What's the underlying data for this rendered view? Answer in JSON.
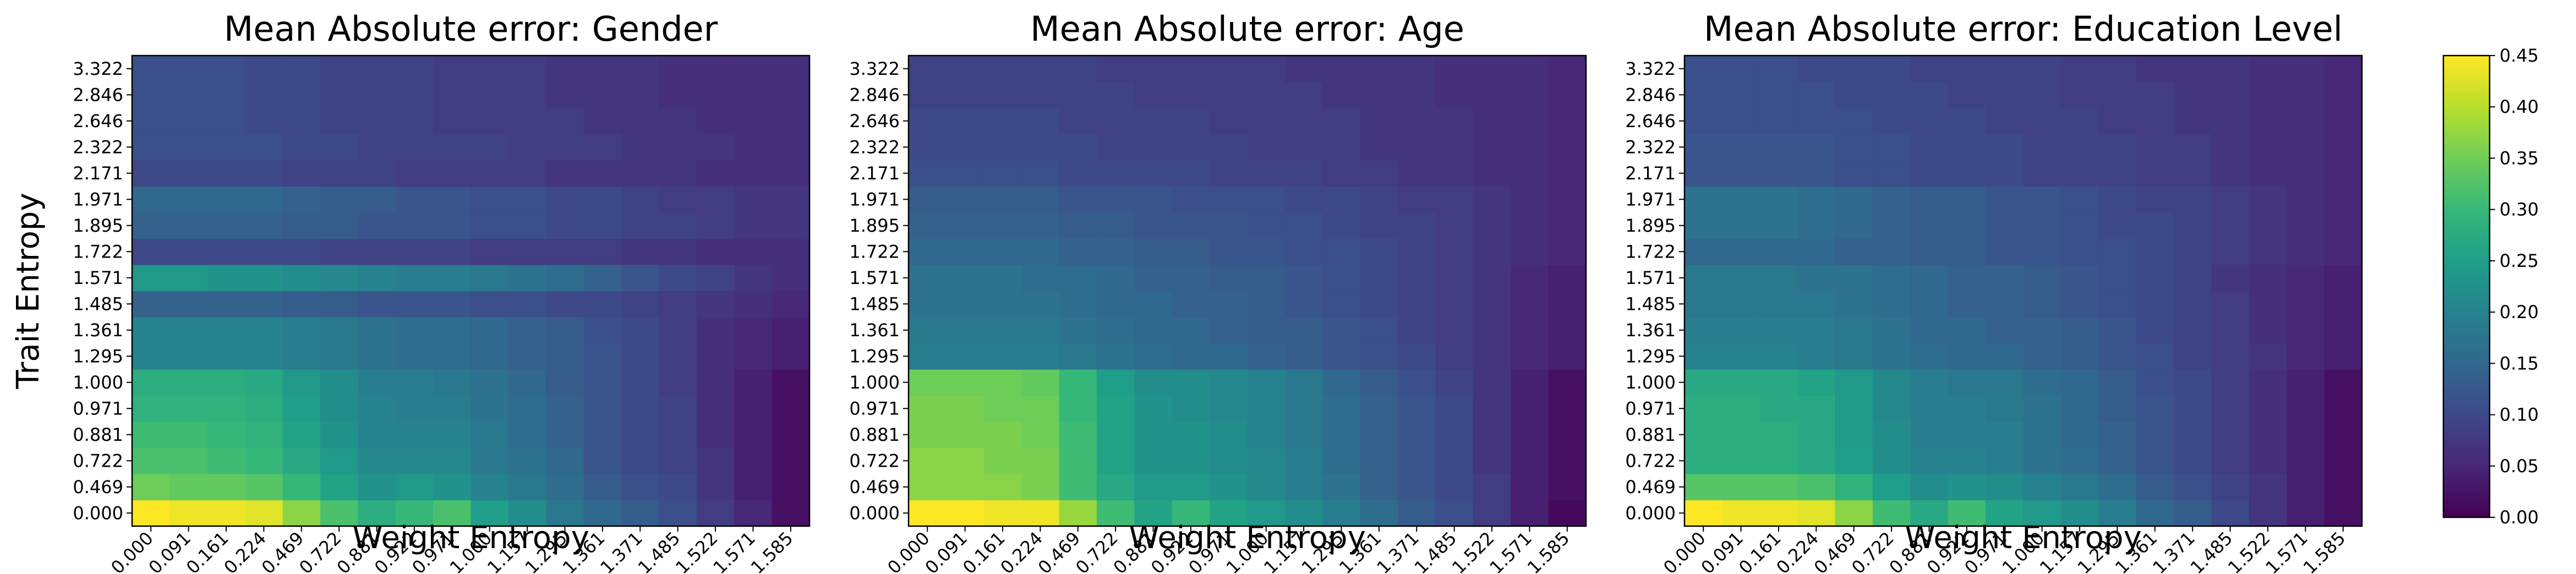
{
  "chart_data": [
    {
      "type": "heatmap",
      "title": "Mean Absolute error: Gender",
      "xlabel": "Weight Entropy",
      "ylabel": "Trait Entropy",
      "x_ticks": [
        "0.000",
        "0.091",
        "0.161",
        "0.224",
        "0.469",
        "0.722",
        "0.881",
        "0.922",
        "0.971",
        "1.000",
        "1.157",
        "1.295",
        "1.361",
        "1.371",
        "1.485",
        "1.522",
        "1.571",
        "1.585"
      ],
      "y_ticks": [
        "0.000",
        "0.469",
        "0.722",
        "0.881",
        "0.971",
        "1.000",
        "1.295",
        "1.361",
        "1.485",
        "1.571",
        "1.722",
        "1.895",
        "1.971",
        "2.171",
        "2.322",
        "2.646",
        "2.846",
        "3.322"
      ],
      "values": [
        [
          0.45,
          0.44,
          0.44,
          0.43,
          0.37,
          0.32,
          0.28,
          0.3,
          0.32,
          0.25,
          0.22,
          0.18,
          0.15,
          0.13,
          0.11,
          0.08,
          0.05,
          0.02
        ],
        [
          0.35,
          0.34,
          0.34,
          0.33,
          0.3,
          0.26,
          0.23,
          0.24,
          0.23,
          0.2,
          0.18,
          0.16,
          0.13,
          0.11,
          0.1,
          0.07,
          0.04,
          0.02
        ],
        [
          0.32,
          0.32,
          0.31,
          0.3,
          0.27,
          0.24,
          0.21,
          0.21,
          0.21,
          0.18,
          0.17,
          0.15,
          0.12,
          0.1,
          0.09,
          0.07,
          0.04,
          0.02
        ],
        [
          0.31,
          0.31,
          0.3,
          0.29,
          0.26,
          0.23,
          0.2,
          0.2,
          0.2,
          0.18,
          0.16,
          0.14,
          0.12,
          0.1,
          0.09,
          0.06,
          0.04,
          0.02
        ],
        [
          0.29,
          0.29,
          0.29,
          0.28,
          0.25,
          0.22,
          0.2,
          0.19,
          0.19,
          0.17,
          0.16,
          0.14,
          0.12,
          0.1,
          0.09,
          0.06,
          0.04,
          0.02
        ],
        [
          0.28,
          0.28,
          0.28,
          0.27,
          0.24,
          0.22,
          0.19,
          0.19,
          0.18,
          0.17,
          0.15,
          0.13,
          0.12,
          0.1,
          0.08,
          0.06,
          0.04,
          0.02
        ],
        [
          0.2,
          0.2,
          0.2,
          0.2,
          0.19,
          0.18,
          0.17,
          0.16,
          0.16,
          0.15,
          0.14,
          0.13,
          0.12,
          0.1,
          0.08,
          0.06,
          0.05,
          0.04
        ],
        [
          0.2,
          0.2,
          0.2,
          0.2,
          0.19,
          0.18,
          0.17,
          0.16,
          0.16,
          0.15,
          0.14,
          0.13,
          0.11,
          0.1,
          0.08,
          0.06,
          0.05,
          0.04
        ],
        [
          0.14,
          0.14,
          0.14,
          0.14,
          0.13,
          0.13,
          0.12,
          0.12,
          0.12,
          0.11,
          0.11,
          0.1,
          0.1,
          0.09,
          0.08,
          0.07,
          0.06,
          0.05
        ],
        [
          0.24,
          0.24,
          0.23,
          0.23,
          0.22,
          0.21,
          0.2,
          0.19,
          0.19,
          0.18,
          0.17,
          0.16,
          0.14,
          0.12,
          0.1,
          0.09,
          0.07,
          0.06
        ],
        [
          0.1,
          0.1,
          0.1,
          0.1,
          0.1,
          0.09,
          0.09,
          0.09,
          0.09,
          0.08,
          0.08,
          0.08,
          0.08,
          0.07,
          0.07,
          0.06,
          0.06,
          0.06
        ],
        [
          0.14,
          0.14,
          0.14,
          0.14,
          0.13,
          0.13,
          0.12,
          0.12,
          0.12,
          0.11,
          0.11,
          0.1,
          0.1,
          0.09,
          0.09,
          0.08,
          0.07,
          0.07
        ],
        [
          0.15,
          0.15,
          0.15,
          0.15,
          0.14,
          0.13,
          0.13,
          0.12,
          0.12,
          0.11,
          0.11,
          0.1,
          0.1,
          0.09,
          0.08,
          0.08,
          0.07,
          0.07
        ],
        [
          0.1,
          0.1,
          0.1,
          0.1,
          0.09,
          0.09,
          0.09,
          0.08,
          0.08,
          0.08,
          0.08,
          0.07,
          0.07,
          0.07,
          0.07,
          0.06,
          0.06,
          0.06
        ],
        [
          0.11,
          0.11,
          0.11,
          0.11,
          0.1,
          0.1,
          0.09,
          0.09,
          0.09,
          0.09,
          0.08,
          0.08,
          0.08,
          0.07,
          0.07,
          0.07,
          0.06,
          0.06
        ],
        [
          0.11,
          0.11,
          0.11,
          0.1,
          0.1,
          0.09,
          0.09,
          0.09,
          0.08,
          0.08,
          0.08,
          0.08,
          0.07,
          0.07,
          0.07,
          0.06,
          0.06,
          0.06
        ],
        [
          0.11,
          0.11,
          0.11,
          0.1,
          0.1,
          0.09,
          0.09,
          0.09,
          0.08,
          0.08,
          0.08,
          0.07,
          0.07,
          0.07,
          0.06,
          0.06,
          0.06,
          0.06
        ],
        [
          0.11,
          0.11,
          0.11,
          0.1,
          0.1,
          0.09,
          0.09,
          0.09,
          0.08,
          0.08,
          0.08,
          0.07,
          0.07,
          0.07,
          0.06,
          0.06,
          0.06,
          0.06
        ]
      ],
      "value_range": [
        0.0,
        0.45
      ]
    },
    {
      "type": "heatmap",
      "title": "Mean Absolute error: Age",
      "xlabel": "Weight Entropy",
      "ylabel": "",
      "x_ticks": [
        "0.000",
        "0.091",
        "0.161",
        "0.224",
        "0.469",
        "0.722",
        "0.881",
        "0.922",
        "0.971",
        "1.000",
        "1.157",
        "1.295",
        "1.361",
        "1.371",
        "1.485",
        "1.522",
        "1.571",
        "1.585"
      ],
      "y_ticks": [
        "0.000",
        "0.469",
        "0.722",
        "0.881",
        "0.971",
        "1.000",
        "1.295",
        "1.361",
        "1.485",
        "1.571",
        "1.722",
        "1.895",
        "1.971",
        "2.171",
        "2.322",
        "2.646",
        "2.846",
        "3.322"
      ],
      "values": [
        [
          0.45,
          0.45,
          0.44,
          0.44,
          0.38,
          0.31,
          0.26,
          0.3,
          0.26,
          0.24,
          0.22,
          0.19,
          0.16,
          0.13,
          0.11,
          0.08,
          0.04,
          0.01
        ],
        [
          0.37,
          0.37,
          0.37,
          0.36,
          0.31,
          0.27,
          0.24,
          0.24,
          0.23,
          0.21,
          0.19,
          0.17,
          0.14,
          0.12,
          0.1,
          0.08,
          0.04,
          0.02
        ],
        [
          0.37,
          0.37,
          0.36,
          0.36,
          0.31,
          0.26,
          0.23,
          0.23,
          0.22,
          0.21,
          0.19,
          0.16,
          0.14,
          0.12,
          0.1,
          0.07,
          0.04,
          0.02
        ],
        [
          0.36,
          0.36,
          0.36,
          0.35,
          0.31,
          0.26,
          0.23,
          0.23,
          0.22,
          0.2,
          0.18,
          0.16,
          0.14,
          0.12,
          0.1,
          0.07,
          0.04,
          0.02
        ],
        [
          0.36,
          0.36,
          0.35,
          0.35,
          0.3,
          0.26,
          0.23,
          0.22,
          0.21,
          0.2,
          0.18,
          0.16,
          0.14,
          0.12,
          0.1,
          0.07,
          0.04,
          0.02
        ],
        [
          0.35,
          0.35,
          0.35,
          0.34,
          0.3,
          0.25,
          0.22,
          0.22,
          0.21,
          0.2,
          0.18,
          0.15,
          0.13,
          0.11,
          0.09,
          0.07,
          0.04,
          0.02
        ],
        [
          0.19,
          0.19,
          0.19,
          0.19,
          0.18,
          0.17,
          0.16,
          0.15,
          0.15,
          0.14,
          0.13,
          0.12,
          0.11,
          0.1,
          0.08,
          0.07,
          0.05,
          0.04
        ],
        [
          0.18,
          0.18,
          0.18,
          0.18,
          0.17,
          0.16,
          0.15,
          0.15,
          0.14,
          0.13,
          0.13,
          0.12,
          0.11,
          0.09,
          0.08,
          0.07,
          0.05,
          0.04
        ],
        [
          0.17,
          0.17,
          0.17,
          0.17,
          0.16,
          0.15,
          0.15,
          0.14,
          0.14,
          0.13,
          0.12,
          0.11,
          0.1,
          0.09,
          0.08,
          0.07,
          0.05,
          0.04
        ],
        [
          0.17,
          0.17,
          0.17,
          0.16,
          0.16,
          0.15,
          0.14,
          0.14,
          0.13,
          0.13,
          0.12,
          0.11,
          0.1,
          0.09,
          0.08,
          0.07,
          0.05,
          0.04
        ],
        [
          0.15,
          0.15,
          0.15,
          0.15,
          0.14,
          0.14,
          0.13,
          0.13,
          0.12,
          0.12,
          0.11,
          0.11,
          0.1,
          0.09,
          0.08,
          0.07,
          0.06,
          0.05
        ],
        [
          0.14,
          0.14,
          0.14,
          0.14,
          0.13,
          0.13,
          0.12,
          0.12,
          0.12,
          0.11,
          0.11,
          0.1,
          0.09,
          0.09,
          0.08,
          0.07,
          0.06,
          0.05
        ],
        [
          0.13,
          0.13,
          0.13,
          0.13,
          0.12,
          0.12,
          0.12,
          0.11,
          0.11,
          0.11,
          0.1,
          0.1,
          0.09,
          0.08,
          0.08,
          0.07,
          0.06,
          0.05
        ],
        [
          0.11,
          0.11,
          0.11,
          0.11,
          0.1,
          0.1,
          0.1,
          0.1,
          0.09,
          0.09,
          0.09,
          0.08,
          0.08,
          0.07,
          0.07,
          0.06,
          0.06,
          0.05
        ],
        [
          0.1,
          0.1,
          0.1,
          0.1,
          0.1,
          0.09,
          0.09,
          0.09,
          0.09,
          0.08,
          0.08,
          0.08,
          0.07,
          0.07,
          0.07,
          0.06,
          0.06,
          0.05
        ],
        [
          0.1,
          0.1,
          0.1,
          0.1,
          0.09,
          0.09,
          0.09,
          0.09,
          0.08,
          0.08,
          0.08,
          0.08,
          0.07,
          0.07,
          0.07,
          0.06,
          0.06,
          0.05
        ],
        [
          0.09,
          0.09,
          0.09,
          0.09,
          0.09,
          0.09,
          0.08,
          0.08,
          0.08,
          0.08,
          0.08,
          0.07,
          0.07,
          0.07,
          0.06,
          0.06,
          0.06,
          0.05
        ],
        [
          0.09,
          0.09,
          0.09,
          0.09,
          0.09,
          0.08,
          0.08,
          0.08,
          0.08,
          0.08,
          0.07,
          0.07,
          0.07,
          0.07,
          0.06,
          0.06,
          0.06,
          0.05
        ]
      ],
      "value_range": [
        0.0,
        0.45
      ]
    },
    {
      "type": "heatmap",
      "title": "Mean Absolute error: Education Level",
      "xlabel": "Weight Entropy",
      "ylabel": "",
      "x_ticks": [
        "0.000",
        "0.091",
        "0.161",
        "0.224",
        "0.469",
        "0.722",
        "0.881",
        "0.922",
        "0.971",
        "1.000",
        "1.157",
        "1.295",
        "1.361",
        "1.371",
        "1.485",
        "1.522",
        "1.571",
        "1.585"
      ],
      "y_ticks": [
        "0.000",
        "0.469",
        "0.722",
        "0.881",
        "0.971",
        "1.000",
        "1.295",
        "1.361",
        "1.485",
        "1.571",
        "1.722",
        "1.895",
        "1.971",
        "2.171",
        "2.322",
        "2.646",
        "2.846",
        "3.322"
      ],
      "values": [
        [
          0.45,
          0.44,
          0.44,
          0.43,
          0.37,
          0.31,
          0.27,
          0.31,
          0.26,
          0.24,
          0.22,
          0.19,
          0.15,
          0.13,
          0.1,
          0.07,
          0.04,
          0.02
        ],
        [
          0.33,
          0.33,
          0.33,
          0.32,
          0.29,
          0.25,
          0.22,
          0.23,
          0.22,
          0.2,
          0.18,
          0.16,
          0.13,
          0.11,
          0.09,
          0.07,
          0.04,
          0.02
        ],
        [
          0.28,
          0.28,
          0.28,
          0.27,
          0.25,
          0.22,
          0.2,
          0.2,
          0.19,
          0.17,
          0.16,
          0.14,
          0.12,
          0.1,
          0.08,
          0.06,
          0.04,
          0.02
        ],
        [
          0.28,
          0.28,
          0.28,
          0.27,
          0.24,
          0.22,
          0.19,
          0.19,
          0.19,
          0.17,
          0.15,
          0.14,
          0.12,
          0.1,
          0.08,
          0.06,
          0.04,
          0.02
        ],
        [
          0.28,
          0.28,
          0.27,
          0.27,
          0.24,
          0.21,
          0.19,
          0.19,
          0.18,
          0.17,
          0.15,
          0.13,
          0.12,
          0.1,
          0.08,
          0.06,
          0.04,
          0.02
        ],
        [
          0.27,
          0.27,
          0.27,
          0.26,
          0.24,
          0.21,
          0.19,
          0.18,
          0.18,
          0.16,
          0.15,
          0.13,
          0.11,
          0.1,
          0.08,
          0.06,
          0.04,
          0.02
        ],
        [
          0.2,
          0.2,
          0.2,
          0.19,
          0.18,
          0.17,
          0.16,
          0.15,
          0.15,
          0.14,
          0.13,
          0.12,
          0.11,
          0.09,
          0.08,
          0.07,
          0.05,
          0.04
        ],
        [
          0.19,
          0.19,
          0.19,
          0.19,
          0.18,
          0.17,
          0.15,
          0.15,
          0.14,
          0.14,
          0.13,
          0.12,
          0.1,
          0.09,
          0.08,
          0.06,
          0.05,
          0.04
        ],
        [
          0.18,
          0.18,
          0.18,
          0.18,
          0.17,
          0.16,
          0.15,
          0.14,
          0.14,
          0.13,
          0.12,
          0.11,
          0.1,
          0.09,
          0.08,
          0.06,
          0.05,
          0.04
        ],
        [
          0.18,
          0.18,
          0.18,
          0.17,
          0.17,
          0.16,
          0.15,
          0.14,
          0.14,
          0.13,
          0.12,
          0.11,
          0.1,
          0.09,
          0.07,
          0.06,
          0.05,
          0.04
        ],
        [
          0.15,
          0.15,
          0.15,
          0.15,
          0.14,
          0.14,
          0.13,
          0.13,
          0.12,
          0.12,
          0.11,
          0.11,
          0.1,
          0.09,
          0.08,
          0.07,
          0.06,
          0.05
        ],
        [
          0.17,
          0.17,
          0.17,
          0.16,
          0.15,
          0.14,
          0.13,
          0.13,
          0.12,
          0.12,
          0.11,
          0.1,
          0.1,
          0.09,
          0.08,
          0.07,
          0.06,
          0.05
        ],
        [
          0.17,
          0.17,
          0.17,
          0.16,
          0.15,
          0.14,
          0.13,
          0.13,
          0.12,
          0.12,
          0.11,
          0.1,
          0.09,
          0.09,
          0.08,
          0.07,
          0.06,
          0.05
        ],
        [
          0.12,
          0.12,
          0.12,
          0.12,
          0.11,
          0.11,
          0.1,
          0.1,
          0.1,
          0.09,
          0.09,
          0.09,
          0.08,
          0.08,
          0.07,
          0.06,
          0.06,
          0.05
        ],
        [
          0.12,
          0.12,
          0.12,
          0.12,
          0.11,
          0.11,
          0.1,
          0.1,
          0.1,
          0.09,
          0.09,
          0.09,
          0.08,
          0.08,
          0.07,
          0.06,
          0.06,
          0.05
        ],
        [
          0.11,
          0.11,
          0.11,
          0.11,
          0.11,
          0.1,
          0.1,
          0.1,
          0.09,
          0.09,
          0.09,
          0.08,
          0.08,
          0.07,
          0.07,
          0.06,
          0.06,
          0.05
        ],
        [
          0.11,
          0.11,
          0.11,
          0.11,
          0.1,
          0.1,
          0.1,
          0.09,
          0.09,
          0.09,
          0.08,
          0.08,
          0.08,
          0.07,
          0.07,
          0.06,
          0.06,
          0.05
        ],
        [
          0.11,
          0.11,
          0.11,
          0.1,
          0.1,
          0.1,
          0.09,
          0.09,
          0.09,
          0.09,
          0.08,
          0.08,
          0.07,
          0.07,
          0.07,
          0.06,
          0.06,
          0.05
        ]
      ],
      "value_range": [
        0.0,
        0.45
      ]
    }
  ],
  "colorbar": {
    "colormap": "viridis",
    "min": 0.0,
    "max": 0.45,
    "ticks": [
      "0.00",
      "0.05",
      "0.10",
      "0.15",
      "0.20",
      "0.25",
      "0.30",
      "0.35",
      "0.40",
      "0.45"
    ]
  }
}
